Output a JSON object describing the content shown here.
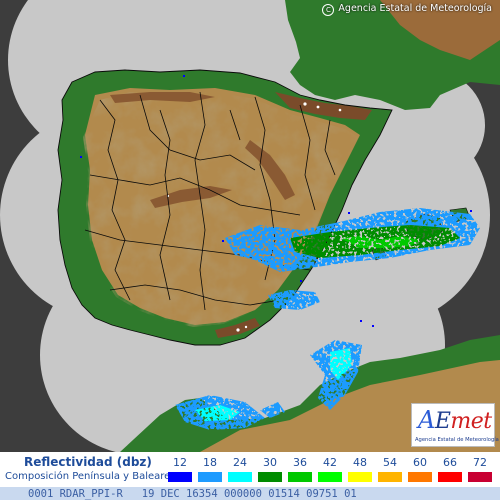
{
  "header": {
    "copyright": "Agencia Estatal de Meteorología"
  },
  "logo": {
    "brand": "AEmet",
    "tagline": "Agencia Estatal de Meteorología"
  },
  "legend": {
    "title": "Reflectividad (dbz)",
    "subtitle": "Composición Península y Baleares",
    "scale": [
      {
        "value": "12",
        "color": "#0000ff"
      },
      {
        "value": "18",
        "color": "#1e9bff"
      },
      {
        "value": "24",
        "color": "#00ffff"
      },
      {
        "value": "30",
        "color": "#008c00"
      },
      {
        "value": "36",
        "color": "#00c800"
      },
      {
        "value": "42",
        "color": "#00ff00"
      },
      {
        "value": "48",
        "color": "#ffff00"
      },
      {
        "value": "54",
        "color": "#ffb400"
      },
      {
        "value": "60",
        "color": "#ff7800"
      },
      {
        "value": "66",
        "color": "#ff0000"
      },
      {
        "value": "72",
        "color": "#c80032"
      }
    ]
  },
  "status": {
    "text": "0001 RDAR_PPI-R   19 DEC 16354 000000 01514 09751 01"
  },
  "map": {
    "palette": {
      "sea": "#3d3d3d",
      "radar_coverage": "#c8c8c8",
      "lowland": "#2f7a2c",
      "plateau": "#b28a4d",
      "mountain": "#7a4b2a",
      "summit": "#ffffff",
      "borders": "#0a0a0a"
    },
    "echo_colors": [
      "#0000ff",
      "#1e9bff",
      "#00ffff",
      "#008c00",
      "#00c800",
      "#00ff00"
    ]
  }
}
